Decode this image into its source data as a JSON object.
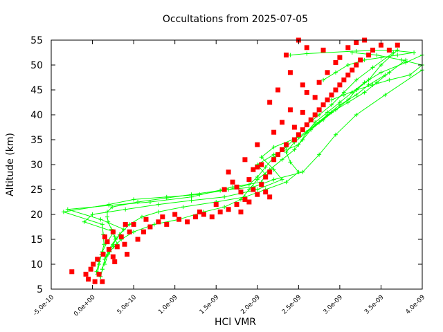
{
  "chart_data": {
    "type": "scatter",
    "title": "Occultations from 2025-07-05",
    "xlabel": "HCl VMR",
    "ylabel": "Altitude (km)",
    "xlim": [
      -5e-10,
      4e-09
    ],
    "ylim": [
      5,
      55
    ],
    "x_tick_labels": [
      "-5.0e-10",
      "0.0e+00",
      "5.0e-10",
      "1.0e-09",
      "1.5e-09",
      "2.0e-09",
      "2.5e-09",
      "3.0e-09",
      "3.5e-09",
      "4.0e-09"
    ],
    "y_tick_labels": [
      "5",
      "10",
      "15",
      "20",
      "25",
      "30",
      "35",
      "40",
      "45",
      "50",
      "55"
    ],
    "grid": false,
    "legend": "none",
    "colors": {
      "profiles": "#00ff00",
      "markers": "#ff0000"
    },
    "series": [
      {
        "marker": "plus",
        "style": "line",
        "color": "#00ff00",
        "profiles": [
          {
            "x": [
              1e-10,
              1.2e-10,
              1.5e-10,
              2.1e-10,
              2.6e-10,
              3.5e-10,
              5e-10,
              7.5e-10,
              1.05e-09,
              1.35e-09,
              1.6e-09,
              1.8e-09,
              1.9e-09,
              2e-09,
              2.15e-09,
              2.3e-09,
              2.45e-09,
              2.55e-09,
              2.65e-09,
              2.8e-09,
              2.95e-09,
              3.1e-09,
              3.2e-09,
              3.35e-09,
              3.5e-09,
              3.7e-09
            ],
            "y": [
              7.5,
              9,
              11,
              12.5,
              13.5,
              15,
              16.5,
              18,
              19,
              20.5,
              21.5,
              23,
              25,
              27,
              29,
              31,
              33,
              35,
              37,
              39,
              41,
              43,
              45,
              47,
              50,
              53
            ]
          },
          {
            "x": [
              6e-11,
              8e-11,
              1.1e-10,
              1.4e-10,
              1.3e-10,
              1.2e-10,
              -3.5e-10,
              2e-10,
              5e-10,
              9e-10,
              1.3e-09,
              1.65e-09,
              1.9e-09,
              2e-09,
              2.1e-09,
              2.2e-09,
              2.35e-09,
              2.5e-09,
              2.6e-09,
              2.75e-09,
              2.9e-09,
              3.05e-09,
              3.2e-09,
              3.4e-09,
              3.65e-09
            ],
            "y": [
              8,
              10,
              12,
              14,
              16,
              18,
              20.5,
              22,
              23,
              23.5,
              24,
              25,
              26,
              27.5,
              29.5,
              31.5,
              33.5,
              36,
              38,
              40,
              42,
              44.5,
              47,
              49.5,
              52.5
            ]
          },
          {
            "x": [
              1.2e-10,
              1.5e-10,
              2e-10,
              2.8e-10,
              3.8e-10,
              1e-10,
              -3e-10,
              2e-10,
              7e-10,
              1.2e-09,
              1.7e-09,
              2.05e-09,
              2.1e-09,
              2e-09,
              2.2e-09,
              2.5e-09,
              2.6e-09,
              2.7e-09,
              2.85e-09,
              3e-09,
              3.15e-09,
              3.3e-09,
              3.5e-09,
              3.8e-09,
              4e-09
            ],
            "y": [
              9,
              11,
              13,
              15,
              17,
              19,
              21,
              21.8,
              22.5,
              23.5,
              25.5,
              26.5,
              28,
              30,
              32,
              34,
              36.5,
              38.5,
              40.5,
              42.5,
              44.5,
              46.5,
              48.5,
              50.5,
              52
            ]
          },
          {
            "x": [
              1.5e-10,
              1.9e-10,
              2.5e-10,
              3.3e-10,
              4.5e-10,
              6e-10,
              8e-10,
              1.1e-09,
              1.5e-09,
              1.85e-09,
              2.1e-09,
              2.35e-09,
              2.5e-09,
              2.4e-09,
              2.35e-09,
              2.45e-09,
              2.6e-09,
              2.75e-09,
              2.9e-09,
              3.1e-09,
              3.3e-09,
              3.45e-09,
              3.6e-09,
              3.8e-09
            ],
            "y": [
              10,
              12,
              14,
              16,
              18,
              19.5,
              20.5,
              21.5,
              22.5,
              23.5,
              25,
              26.5,
              28.5,
              30.5,
              32.5,
              34.5,
              36.5,
              38.5,
              40.5,
              42.5,
              44.5,
              46.5,
              48.5,
              51
            ]
          },
          {
            "x": [
              5e-11,
              8e-11,
              1.2e-10,
              1.8e-10,
              2.6e-10,
              -1e-10,
              0.0,
              4e-10,
              8e-10,
              1.2e-09,
              1.6e-09,
              2e-09,
              2.3e-09,
              2.2e-09,
              2.05e-09,
              2.2e-09,
              2.5e-09,
              2.7e-09,
              2.85e-09,
              3e-09,
              3.2e-09,
              3.35e-09,
              3.55e-09
            ],
            "y": [
              8.5,
              10.5,
              12.5,
              14.5,
              16.5,
              18.5,
              20,
              21,
              22,
              22.8,
              23.5,
              25,
              27,
              29,
              31.5,
              33.5,
              35.5,
              38,
              40,
              42,
              44,
              46,
              48
            ]
          },
          {
            "x": [
              3e-10,
              2.7e-10,
              2.3e-10,
              1.9e-10,
              1.8e-10,
              1.8e-10,
              2.4e-10,
              5.5e-10,
              9e-10,
              1.2e-09,
              1.55e-09,
              1.95e-09,
              2.2e-09,
              2.55e-09,
              2.75e-09,
              2.95e-09,
              3.2e-09,
              3.55e-09,
              4e-09
            ],
            "y": [
              14,
              15.5,
              17,
              18.5,
              19.5,
              20.5,
              21.5,
              22.5,
              23.3,
              24,
              24.8,
              25.5,
              27,
              28.5,
              32,
              36,
              40,
              44,
              49
            ]
          },
          {
            "x": [
              2.8e-09,
              2.95e-09,
              3.1e-09,
              3.3e-09,
              3.5e-09,
              3.7e-09,
              3.9e-09,
              3.6e-09,
              3.2e-09,
              2.6e-09,
              2.4e-09
            ],
            "y": [
              47,
              48.5,
              50,
              51,
              51.5,
              52,
              52.5,
              53,
              52.8,
              52.3,
              52
            ]
          },
          {
            "x": [
              2.9e-09,
              3.05e-09,
              3.2e-09,
              3.4e-09,
              3.6e-09,
              3.85e-09,
              4e-09,
              3.75e-09,
              3.45e-09,
              3.15e-09
            ],
            "y": [
              43,
              44,
              45,
              46,
              47,
              48,
              50,
              51,
              52,
              52.5
            ]
          }
        ]
      },
      {
        "marker": "square",
        "style": "points",
        "color": "#ff0000",
        "points": [
          [
            -2.5e-10,
            8.5
          ],
          [
            -8e-11,
            8
          ],
          [
            -5e-11,
            7
          ],
          [
            -2e-11,
            9
          ],
          [
            3e-11,
            6.5
          ],
          [
            8e-11,
            8
          ],
          [
            1.2e-10,
            6.5
          ],
          [
            1e-11,
            10
          ],
          [
            6e-11,
            11
          ],
          [
            1.3e-10,
            12
          ],
          [
            2e-10,
            13
          ],
          [
            2.5e-10,
            11.5
          ],
          [
            1.8e-10,
            14.5
          ],
          [
            3e-10,
            13.5
          ],
          [
            3.5e-10,
            15.5
          ],
          [
            2.7e-10,
            10.5
          ],
          [
            4.2e-10,
            12
          ],
          [
            4.5e-10,
            16.5
          ],
          [
            3.9e-10,
            14
          ],
          [
            5.5e-10,
            15
          ],
          [
            6.2e-10,
            16.5
          ],
          [
            5e-10,
            18
          ],
          [
            7e-10,
            17.5
          ],
          [
            8e-10,
            18.5
          ],
          [
            9e-10,
            18
          ],
          [
            1.05e-09,
            19
          ],
          [
            1.15e-09,
            18.5
          ],
          [
            1.25e-09,
            19.5
          ],
          [
            1.35e-09,
            20
          ],
          [
            1.45e-09,
            19.5
          ],
          [
            1.55e-09,
            20.5
          ],
          [
            1.65e-09,
            21
          ],
          [
            1.75e-09,
            22
          ],
          [
            1.8e-09,
            20.5
          ],
          [
            1.85e-09,
            23
          ],
          [
            1.9e-09,
            22.5
          ],
          [
            1.8e-09,
            24.5
          ],
          [
            1.95e-09,
            25
          ],
          [
            2e-09,
            24
          ],
          [
            2.05e-09,
            26
          ],
          [
            1.9e-09,
            27
          ],
          [
            2.1e-09,
            27.5
          ],
          [
            2.15e-09,
            28.5
          ],
          [
            1.95e-09,
            29
          ],
          [
            2e-09,
            29.5
          ],
          [
            2.1e-09,
            24.5
          ],
          [
            2.15e-09,
            23.5
          ],
          [
            1.75e-09,
            25.5
          ],
          [
            1.7e-09,
            26.5
          ],
          [
            2.05e-09,
            30
          ],
          [
            2.2e-09,
            31
          ],
          [
            2.25e-09,
            32
          ],
          [
            2.3e-09,
            33
          ],
          [
            2.35e-09,
            34
          ],
          [
            2.45e-09,
            35
          ],
          [
            2.5e-09,
            36
          ],
          [
            2.55e-09,
            37
          ],
          [
            2.45e-09,
            37.5
          ],
          [
            2.6e-09,
            38
          ],
          [
            2.65e-09,
            39
          ],
          [
            2.7e-09,
            40
          ],
          [
            2.55e-09,
            40.5
          ],
          [
            2.75e-09,
            41
          ],
          [
            2.8e-09,
            42
          ],
          [
            2.85e-09,
            43
          ],
          [
            2.7e-09,
            43.5
          ],
          [
            2.9e-09,
            44
          ],
          [
            2.6e-09,
            44.5
          ],
          [
            2.95e-09,
            45
          ],
          [
            3e-09,
            46
          ],
          [
            2.75e-09,
            46.5
          ],
          [
            3.05e-09,
            47
          ],
          [
            3.1e-09,
            48
          ],
          [
            2.85e-09,
            48.5
          ],
          [
            3.15e-09,
            49
          ],
          [
            3.2e-09,
            50
          ],
          [
            2.95e-09,
            50.5
          ],
          [
            3.25e-09,
            51
          ],
          [
            3e-09,
            51.5
          ],
          [
            3.35e-09,
            52
          ],
          [
            3.4e-09,
            53
          ],
          [
            3.1e-09,
            53.5
          ],
          [
            3.5e-09,
            54
          ],
          [
            3.2e-09,
            54.5
          ],
          [
            3.6e-09,
            53
          ],
          [
            3.7e-09,
            54
          ],
          [
            2.8e-09,
            53
          ],
          [
            2.6e-09,
            53.5
          ],
          [
            2.35e-09,
            52
          ],
          [
            2.5e-09,
            55
          ],
          [
            3.3e-09,
            55
          ],
          [
            2.4e-09,
            48.5
          ],
          [
            2.55e-09,
            46
          ],
          [
            2.25e-09,
            45
          ],
          [
            2.15e-09,
            42.5
          ],
          [
            2.4e-09,
            41
          ],
          [
            2.3e-09,
            38.5
          ],
          [
            2.2e-09,
            36.5
          ],
          [
            2e-09,
            34
          ],
          [
            1.85e-09,
            31
          ],
          [
            1.65e-09,
            28.5
          ],
          [
            1.6e-09,
            25
          ],
          [
            1.5e-09,
            22
          ],
          [
            1.3e-09,
            20.5
          ],
          [
            1e-09,
            20
          ],
          [
            8.5e-10,
            19.5
          ],
          [
            6.5e-10,
            19
          ],
          [
            4e-10,
            18
          ],
          [
            2.5e-10,
            16.5
          ],
          [
            1.5e-10,
            15.5
          ]
        ]
      }
    ]
  }
}
